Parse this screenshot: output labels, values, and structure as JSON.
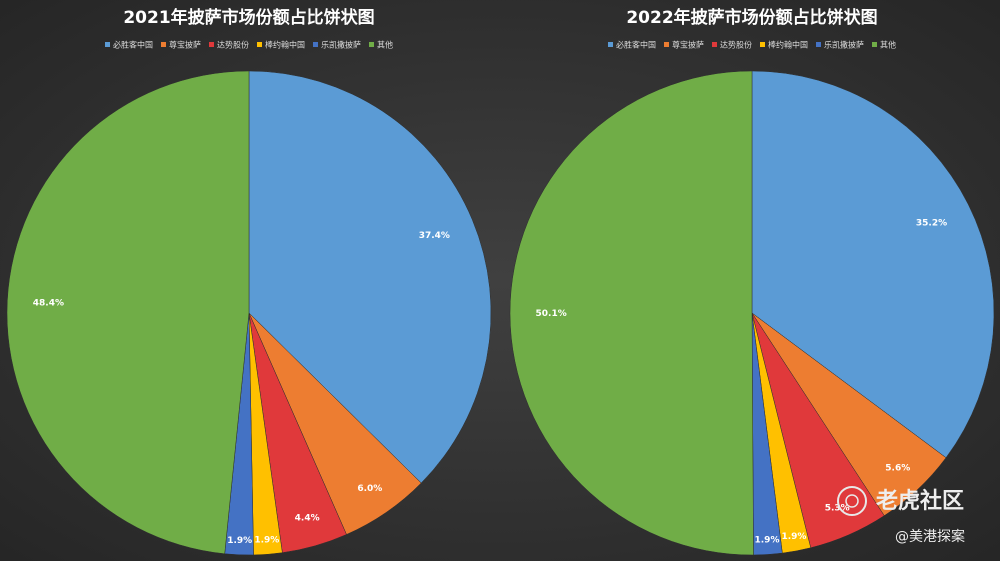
{
  "chart_data": [
    {
      "type": "pie",
      "title": "2021年披萨市场份额占比饼状图",
      "categories": [
        "必胜客中国",
        "尊宝披萨",
        "达势股份",
        "棒约翰中国",
        "乐凯撒披萨",
        "其他"
      ],
      "values": [
        37.4,
        6.0,
        4.4,
        1.9,
        1.9,
        48.4
      ],
      "value_labels": [
        "37.4%",
        "6.0%",
        "4.4%",
        "1.9%",
        "1.9%",
        "48.4%"
      ],
      "colors": [
        "#5b9bd5",
        "#ed7d31",
        "#e0393b",
        "#ffc000",
        "#4472c4",
        "#70ad47"
      ],
      "legend": "top"
    },
    {
      "type": "pie",
      "title": "2022年披萨市场份额占比饼状图",
      "categories": [
        "必胜客中国",
        "尊宝披萨",
        "达势股份",
        "棒约翰中国",
        "乐凯撒披萨",
        "其他"
      ],
      "values": [
        35.2,
        5.6,
        5.3,
        1.9,
        1.9,
        50.1
      ],
      "value_labels": [
        "35.2%",
        "5.6%",
        "5.3%",
        "1.9%",
        "1.9%",
        "50.1%"
      ],
      "colors": [
        "#5b9bd5",
        "#ed7d31",
        "#e0393b",
        "#ffc000",
        "#4472c4",
        "#70ad47"
      ],
      "legend": "top"
    }
  ],
  "watermark": {
    "brand": "老虎社区",
    "handle": "@美港探案"
  }
}
